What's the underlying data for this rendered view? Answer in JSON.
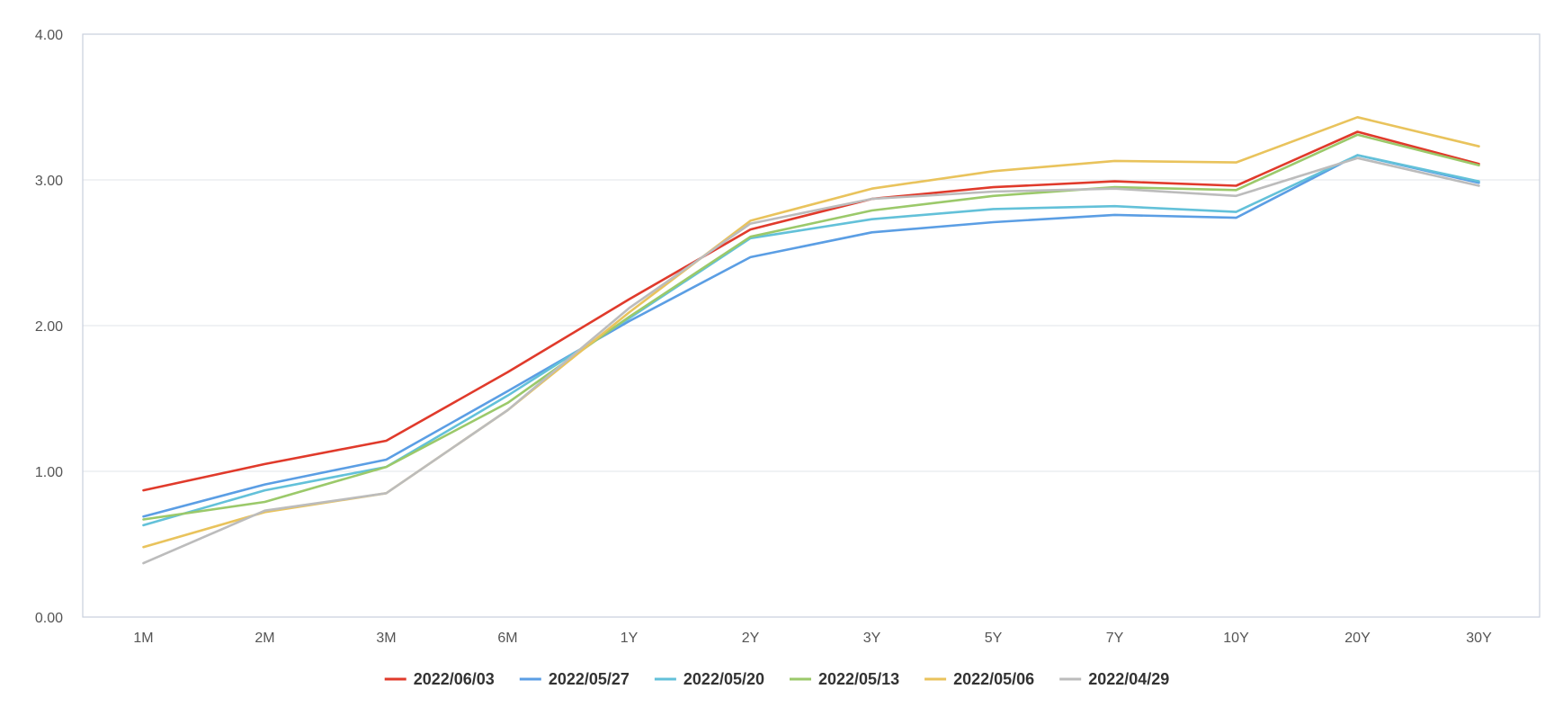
{
  "chart_data": {
    "type": "line",
    "categories": [
      "1M",
      "2M",
      "3M",
      "6M",
      "1Y",
      "2Y",
      "3Y",
      "5Y",
      "7Y",
      "10Y",
      "20Y",
      "30Y"
    ],
    "ylim": [
      0,
      4
    ],
    "yticks": [
      "0.00",
      "1.00",
      "2.00",
      "3.00",
      "4.00"
    ],
    "grid": true,
    "legend_position": "bottom",
    "series": [
      {
        "name": "2022/06/03",
        "color": "#e03a2b",
        "values": [
          0.87,
          1.05,
          1.21,
          1.68,
          2.18,
          2.66,
          2.87,
          2.95,
          2.99,
          2.96,
          3.33,
          3.11
        ]
      },
      {
        "name": "2022/05/27",
        "color": "#5b9ee4",
        "values": [
          0.69,
          0.91,
          1.08,
          1.55,
          2.03,
          2.47,
          2.64,
          2.71,
          2.76,
          2.74,
          3.17,
          2.98
        ]
      },
      {
        "name": "2022/05/20",
        "color": "#63c1d9",
        "values": [
          0.63,
          0.87,
          1.03,
          1.52,
          2.05,
          2.6,
          2.73,
          2.8,
          2.82,
          2.78,
          3.17,
          2.99
        ]
      },
      {
        "name": "2022/05/13",
        "color": "#9bc96a",
        "values": [
          0.67,
          0.79,
          1.03,
          1.47,
          2.06,
          2.61,
          2.79,
          2.89,
          2.95,
          2.93,
          3.31,
          3.1
        ]
      },
      {
        "name": "2022/05/06",
        "color": "#e9c35c",
        "values": [
          0.48,
          0.72,
          0.85,
          1.42,
          2.09,
          2.72,
          2.94,
          3.06,
          3.13,
          3.12,
          3.43,
          3.23
        ]
      },
      {
        "name": "2022/04/29",
        "color": "#bcbcbc",
        "values": [
          0.37,
          0.73,
          0.85,
          1.42,
          2.12,
          2.7,
          2.87,
          2.92,
          2.94,
          2.89,
          3.15,
          2.96
        ]
      }
    ]
  }
}
